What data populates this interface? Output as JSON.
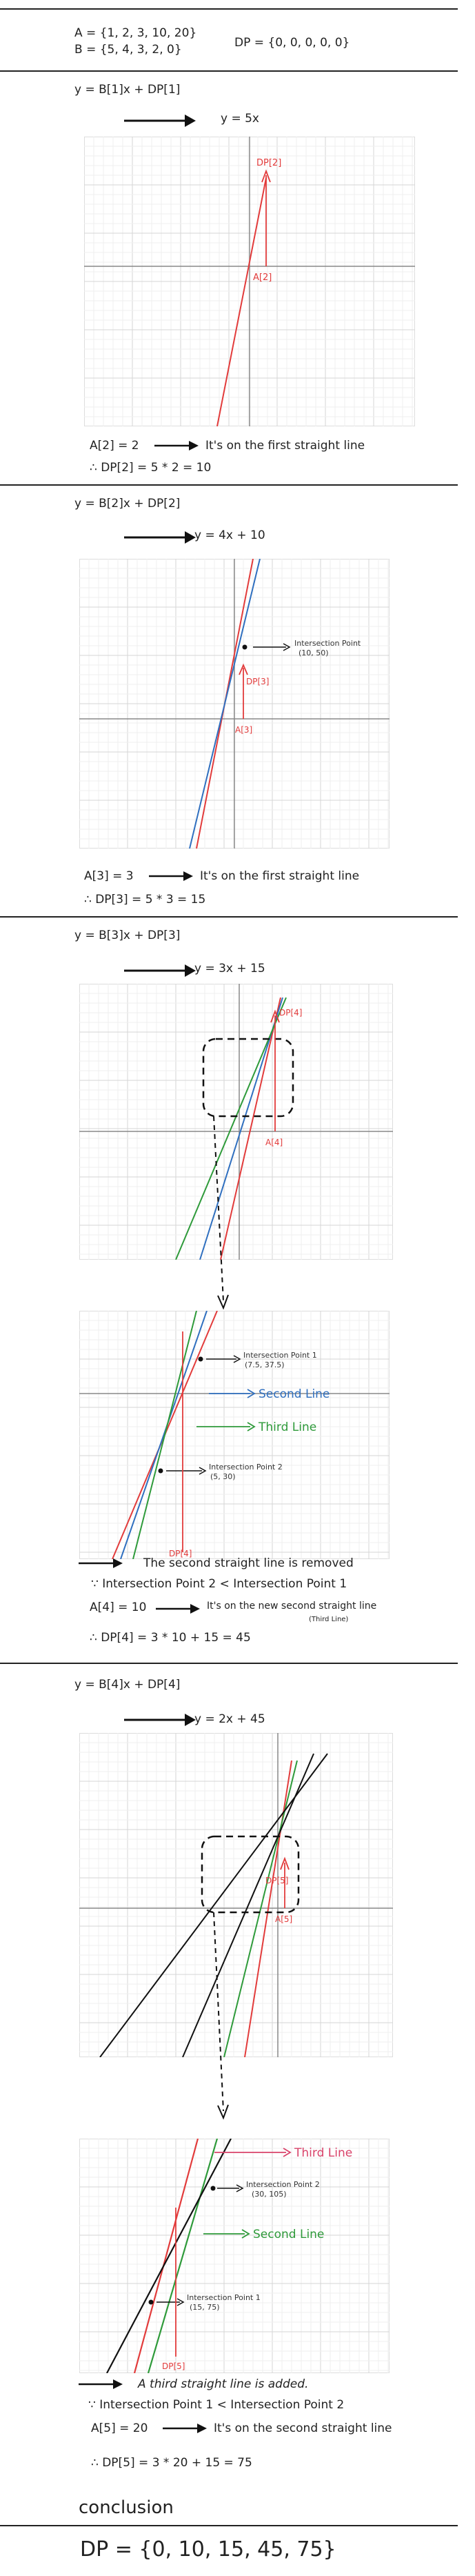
{
  "header": {
    "a_def": "A = {1, 2, 3, 10, 20}",
    "b_def": "B = {5, 4, 3, 2, 0}",
    "dp_init": "DP = {0, 0, 0, 0, 0}"
  },
  "step1": {
    "formula": "y = B[1]x + DP[1]",
    "line_eq": "y = 5x",
    "dp_label": "DP[2]",
    "a_label": "A[2]",
    "note1": "A[2] = 2",
    "note1b": "It's on the first straight line",
    "note2": "∴ DP[2] = 5 * 2 = 10"
  },
  "step2": {
    "formula": "y = B[2]x + DP[2]",
    "line_eq": "y = 4x + 10",
    "intersection": "Intersection Point",
    "intersection_coords": "(10, 50)",
    "dp_label": "DP[3]",
    "a_label": "A[3]",
    "note1": "A[3] = 3",
    "note1b": "It's on the first straight line",
    "note2": "∴ DP[3] = 5 * 3 = 15"
  },
  "step3": {
    "formula": "y = B[3]x + DP[3]",
    "line_eq": "y = 3x + 15",
    "dp_label": "DP[4]",
    "a_label": "A[4]",
    "zoom_ip1": "Intersection Point 1",
    "zoom_ip1_coords": "(7.5, 37.5)",
    "zoom_ip2": "Intersection Point 2",
    "zoom_ip2_coords": "(5, 30)",
    "second_line": "Second Line",
    "third_line": "Third Line",
    "zoom_dp": "DP[4]",
    "removed": "The second straight line is removed",
    "because": "∵ Intersection Point 2 < Intersection Point 1",
    "note1": "A[4] = 10",
    "note1b": "It's on the new second straight line",
    "note1c": "(Third Line)",
    "note2": "∴ DP[4] = 3 * 10 + 15 = 45"
  },
  "step4": {
    "formula": "y = B[4]x + DP[4]",
    "line_eq": "y = 2x + 45",
    "dp_label": "DP[5]",
    "a_label": "A[5]",
    "zoom_ip1": "Intersection Point 1",
    "zoom_ip1_coords": "(15, 75)",
    "zoom_ip2": "Intersection Point 2",
    "zoom_ip2_coords": "(30, 105)",
    "third_line": "Third Line",
    "second_line": "Second Line",
    "zoom_dp": "DP[5]",
    "added": "A third straight line is added.",
    "because": "∵ Intersection Point 1 < Intersection Point 2",
    "note1": "A[5] = 20",
    "note1b": "It's on the second straight line",
    "note2": "∴ DP[5] = 3 * 20 + 15 = 75"
  },
  "conclusion": {
    "title": "conclusion",
    "result": "DP = {0, 10, 15, 45, 75}"
  },
  "colors": {
    "red": "#e23b3b",
    "blue": "#2f6fbf",
    "green": "#2e9a3a",
    "black": "#111111",
    "pink": "#d9436a"
  }
}
